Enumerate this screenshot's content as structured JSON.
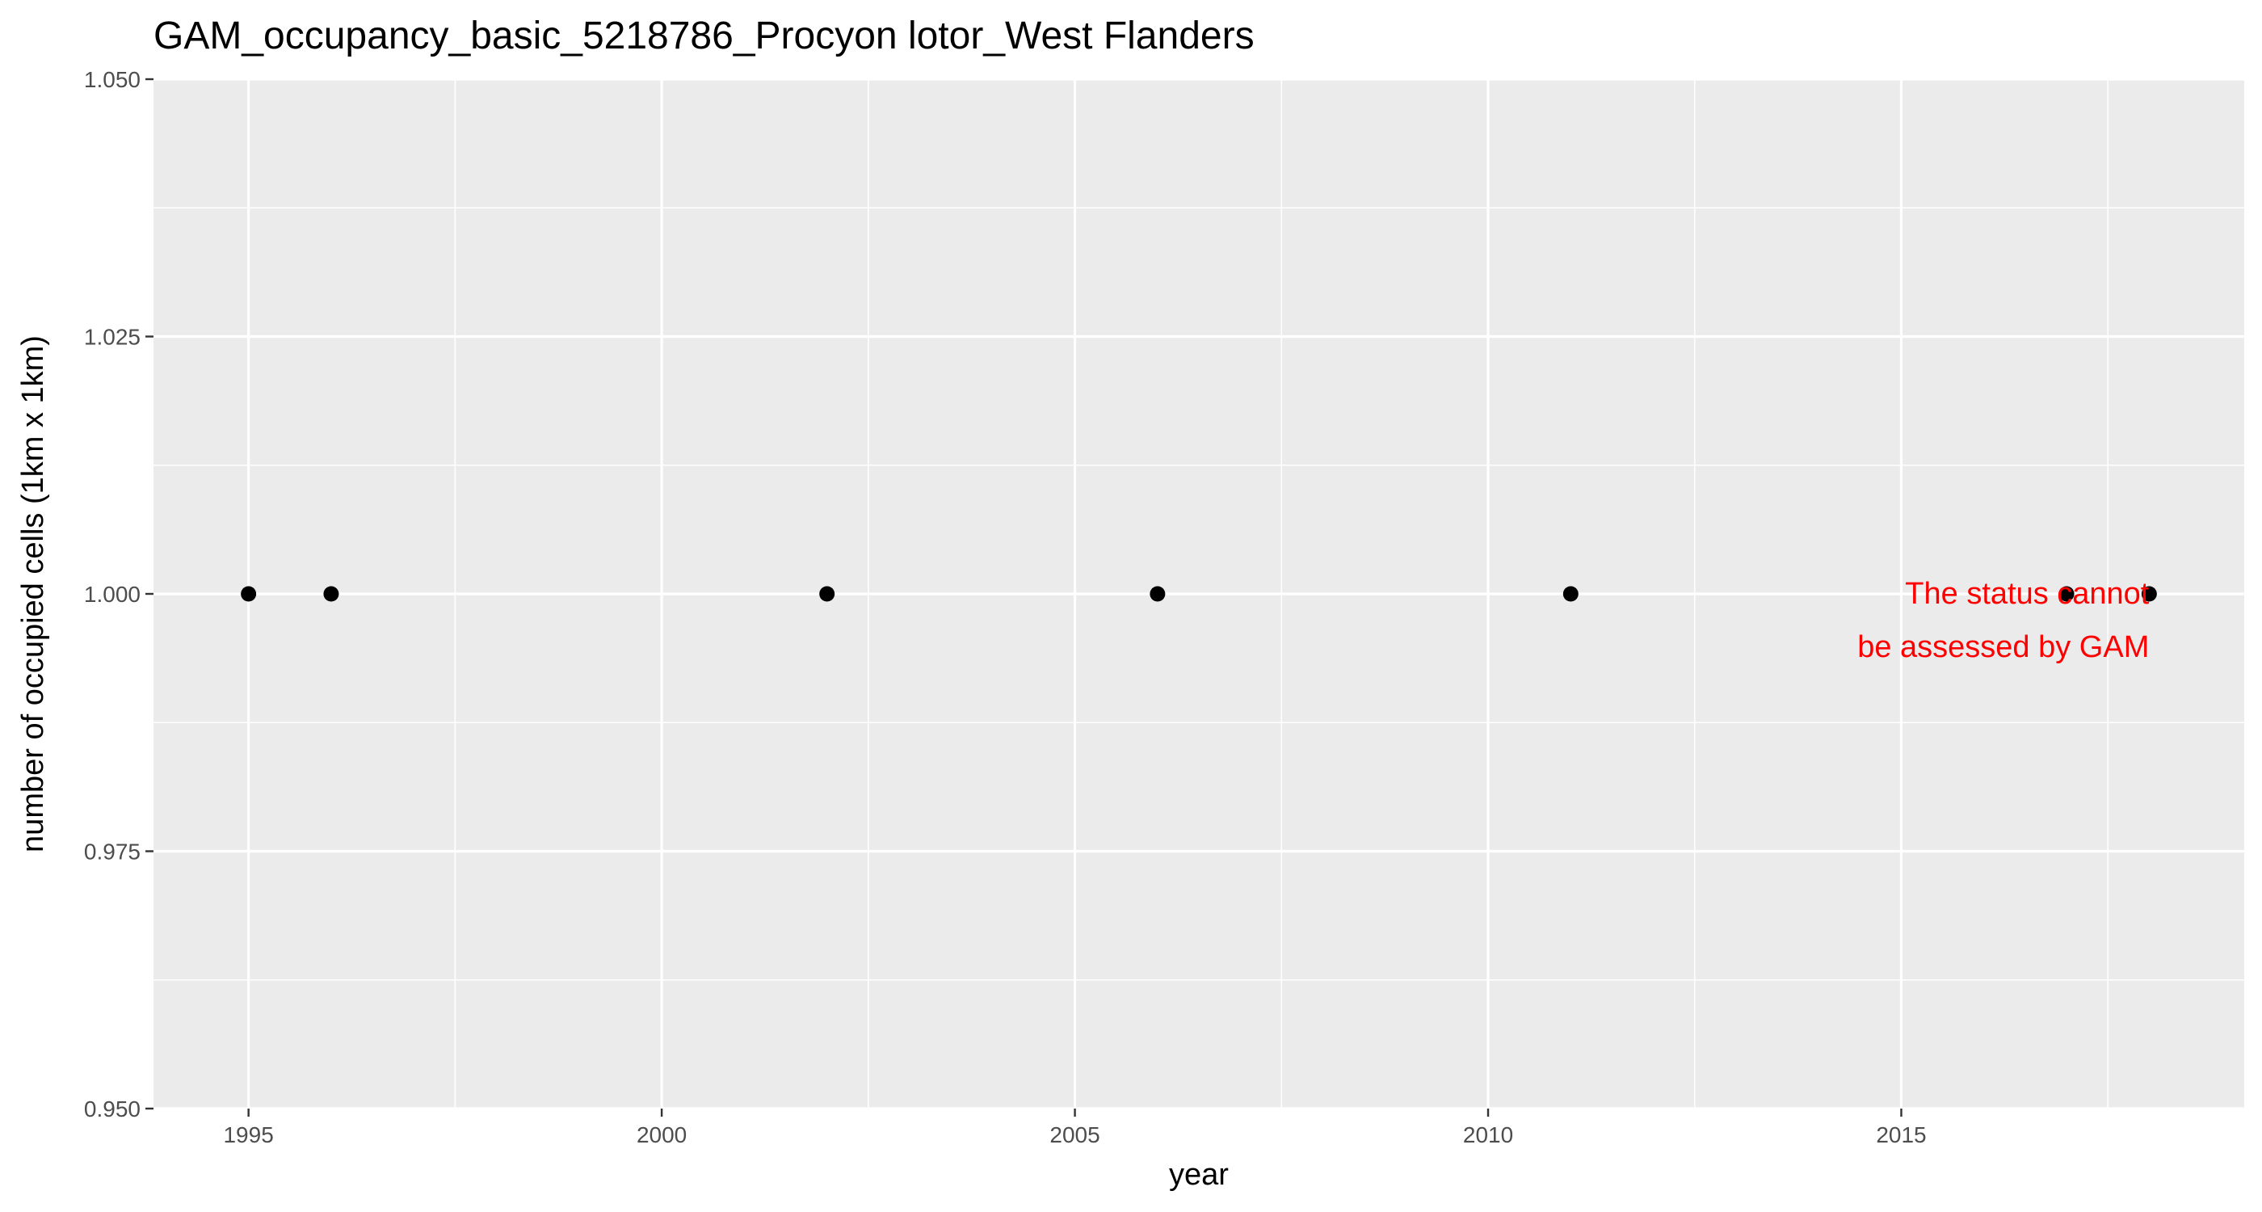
{
  "chart_data": {
    "type": "scatter",
    "title": "GAM_occupancy_basic_5218786_Procyon lotor_West Flanders",
    "xlabel": "year",
    "ylabel": "number of occupied cells (1km x 1km)",
    "xlim": [
      1993.85,
      2019.15
    ],
    "ylim": [
      0.95,
      1.05
    ],
    "x_ticks": [
      1995,
      2000,
      2005,
      2010,
      2015
    ],
    "x_tick_labels": [
      "1995",
      "2000",
      "2005",
      "2010",
      "2015"
    ],
    "y_ticks": [
      0.95,
      0.975,
      1.0,
      1.025,
      1.05
    ],
    "y_tick_labels": [
      "0.950",
      "0.975",
      "1.000",
      "1.025",
      "1.050"
    ],
    "grid": true,
    "legend": "none",
    "point_color": "#000000",
    "panel_color": "#ebebeb",
    "grid_color": "#ffffff",
    "points": [
      {
        "x": 1995,
        "y": 1
      },
      {
        "x": 1996,
        "y": 1
      },
      {
        "x": 2002,
        "y": 1
      },
      {
        "x": 2006,
        "y": 1
      },
      {
        "x": 2011,
        "y": 1
      },
      {
        "x": 2017,
        "y": 1
      },
      {
        "x": 2018,
        "y": 1
      }
    ],
    "annotation": {
      "lines": [
        "The status cannot",
        "be assessed by GAM"
      ],
      "x": 2018,
      "y": 0.9975,
      "color": "#ff0000"
    }
  }
}
